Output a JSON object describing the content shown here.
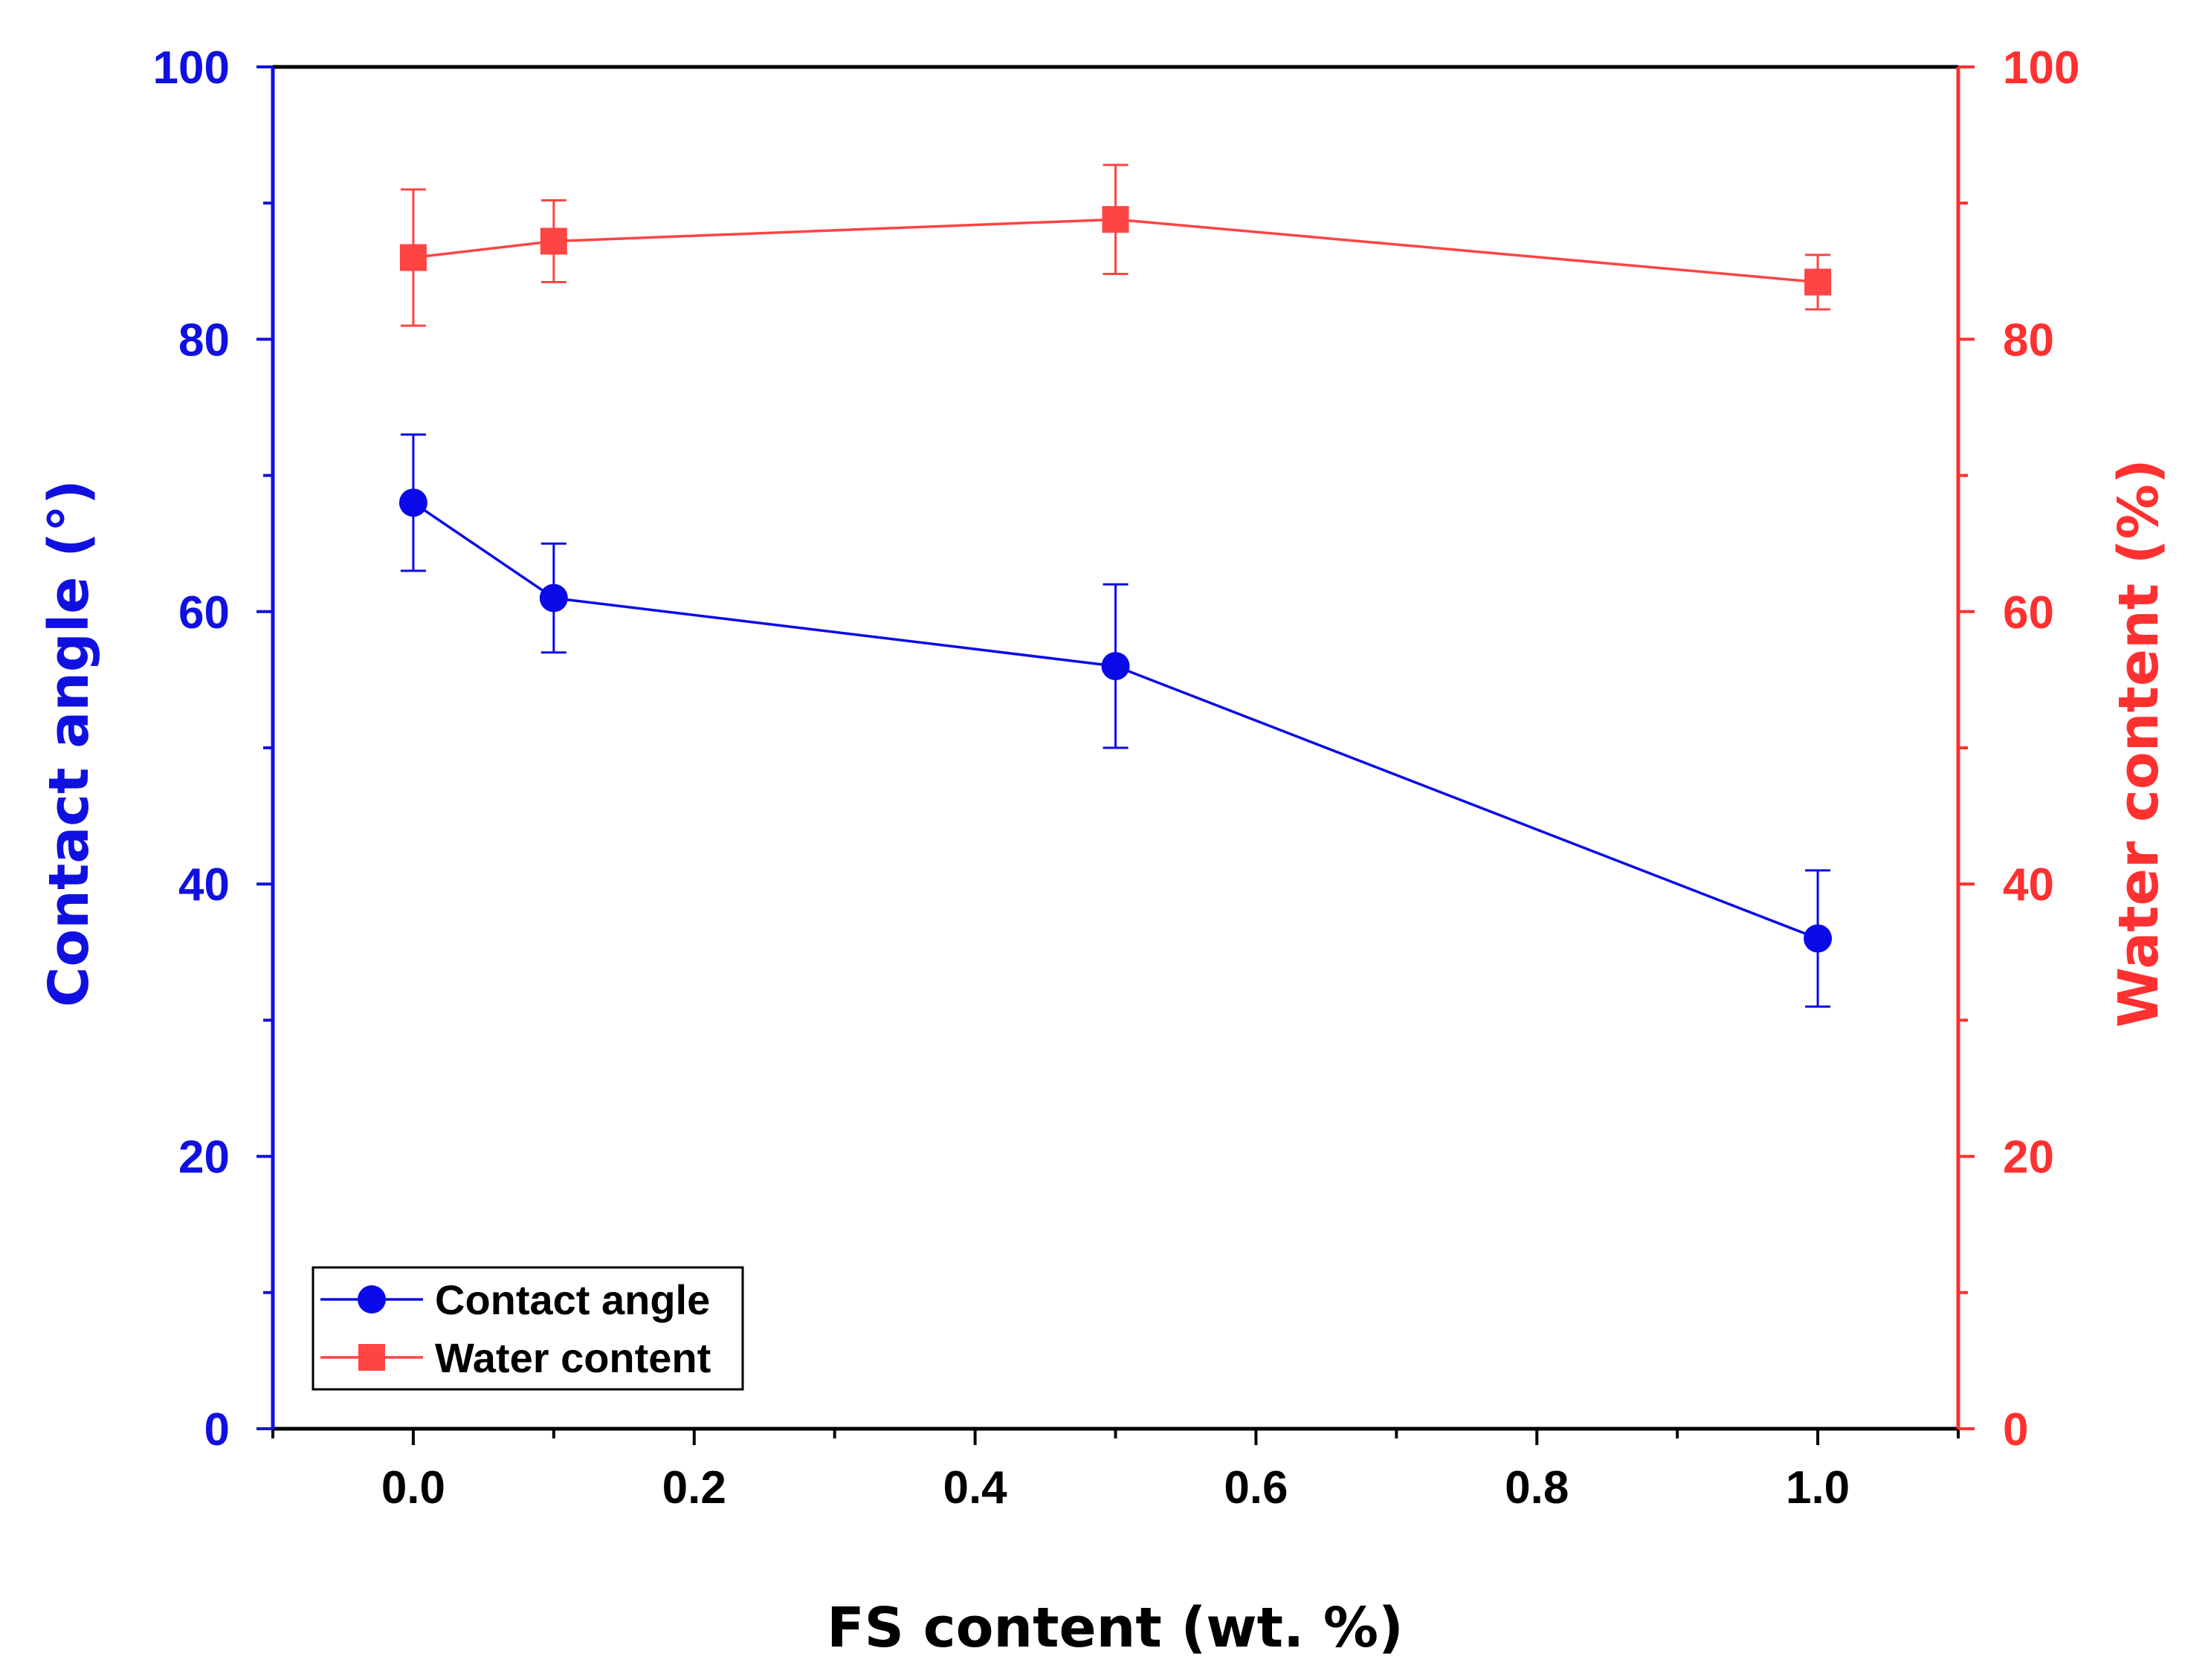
{
  "colors": {
    "left_axis": "#1010e0",
    "right_axis": "#ff3030",
    "contact_angle": "#0a0ae8",
    "water_content": "#ff4444",
    "frame": "#000000"
  },
  "chart_data": {
    "type": "line",
    "xlabel": "FS content (wt. %)",
    "ylabel_left": "Contact angle (°)",
    "ylabel_right": "Water content (%)",
    "xlim": [
      -0.1,
      1.1
    ],
    "ylim_left": [
      0,
      100
    ],
    "ylim_right": [
      0,
      100
    ],
    "x_ticks": [
      0.0,
      0.2,
      0.4,
      0.6,
      0.8,
      1.0
    ],
    "x_tick_labels": [
      "0.0",
      "0.2",
      "0.4",
      "0.6",
      "0.8",
      "1.0"
    ],
    "x_minor_ticks": [
      -0.1,
      0.1,
      0.3,
      0.5,
      0.7,
      0.9,
      1.1
    ],
    "y_ticks_left": [
      0,
      20,
      40,
      60,
      80,
      100
    ],
    "y_tick_labels_left": [
      "0",
      "20",
      "40",
      "60",
      "80",
      "100"
    ],
    "y_ticks_right": [
      0,
      20,
      40,
      60,
      80,
      100
    ],
    "y_tick_labels_right": [
      "0",
      "20",
      "40",
      "60",
      "80",
      "100"
    ],
    "y_minor_ticks": [
      10,
      30,
      50,
      70,
      90
    ],
    "legend_position": "bottom-left",
    "series": [
      {
        "name": "Contact angle",
        "axis": "left",
        "marker": "circle",
        "x": [
          0.0,
          0.1,
          0.5,
          1.0
        ],
        "y": [
          68,
          61,
          56,
          36
        ],
        "error": [
          5,
          4,
          6,
          5
        ]
      },
      {
        "name": "Water content",
        "axis": "right",
        "marker": "square",
        "x": [
          0.0,
          0.1,
          0.5,
          1.0
        ],
        "y": [
          86,
          87.2,
          88.8,
          84.2
        ],
        "error": [
          5,
          3,
          4,
          2
        ]
      }
    ]
  }
}
